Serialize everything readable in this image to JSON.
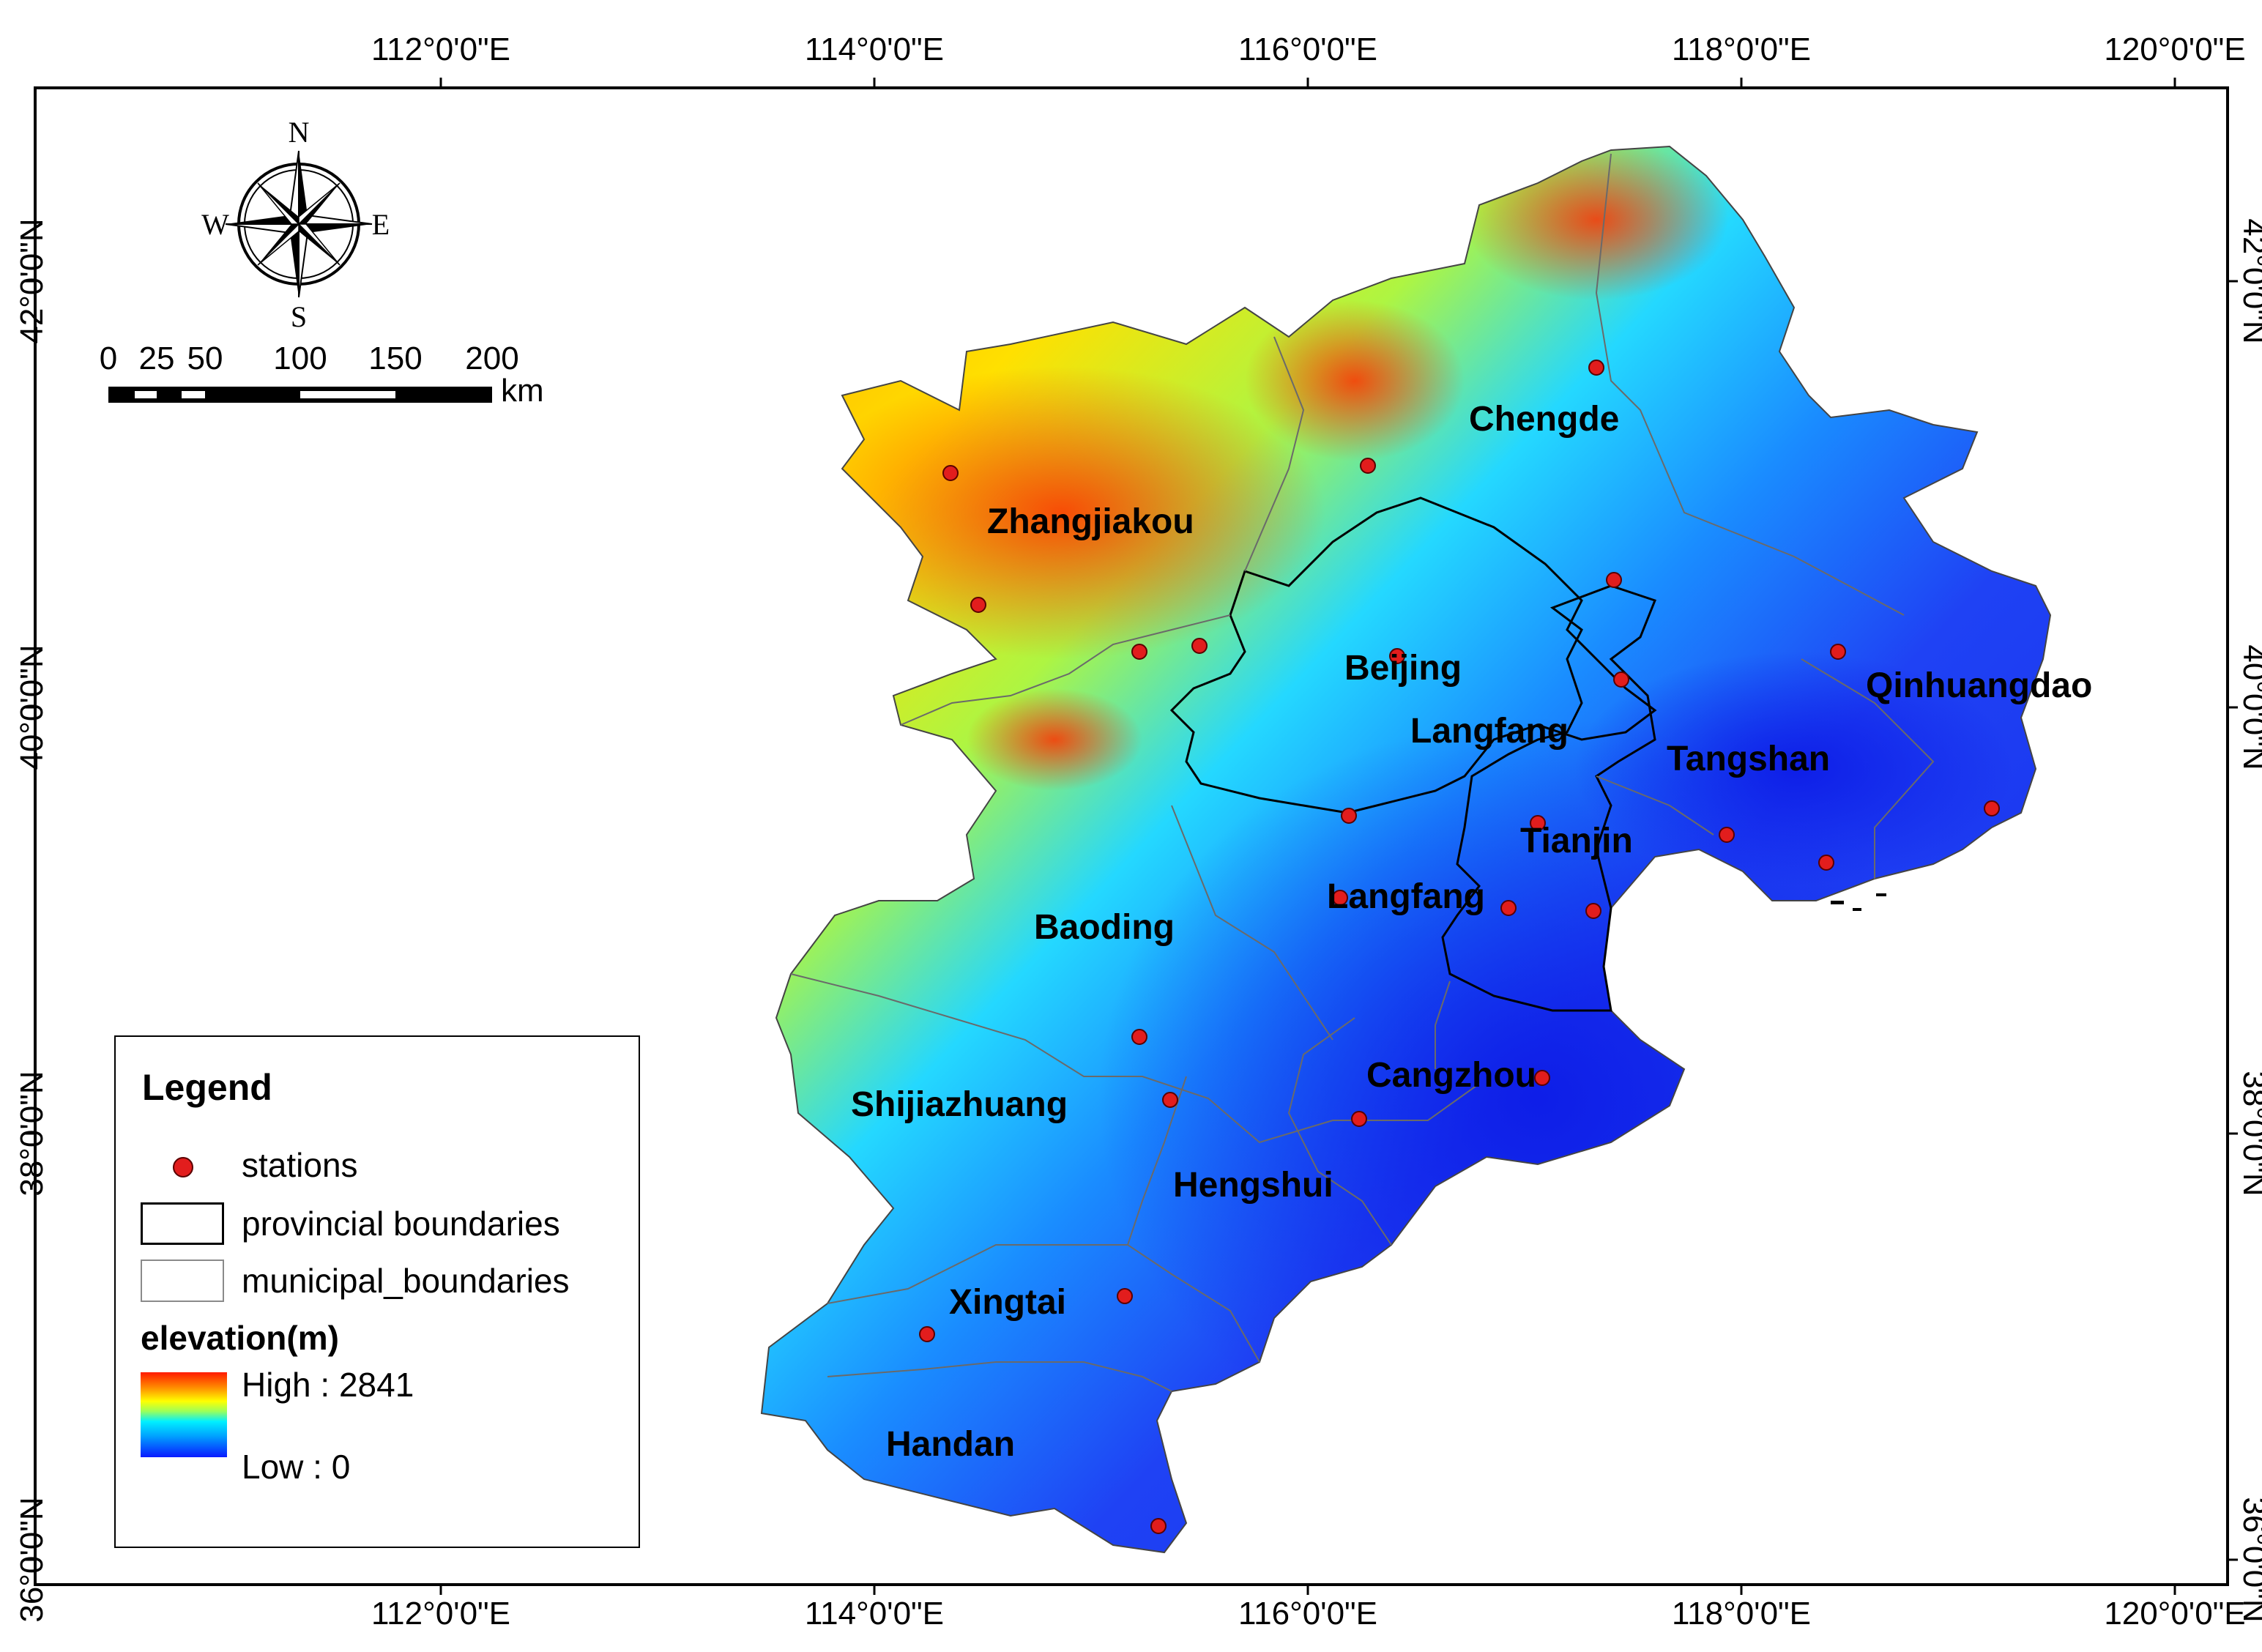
{
  "axes": {
    "lon_labels": [
      "112°0'0\"E",
      "114°0'0\"E",
      "116°0'0\"E",
      "118°0'0\"E",
      "120°0'0\"E"
    ],
    "lat_labels": [
      "42°0'0\"N",
      "40°0'0\"N",
      "38°0'0\"N",
      "36°0'0\"N"
    ]
  },
  "compass": {
    "n": "N",
    "s": "S",
    "e": "E",
    "w": "W"
  },
  "scale_bar": {
    "ticks": [
      "0",
      "25",
      "50",
      "100",
      "150",
      "200"
    ],
    "unit": "km"
  },
  "cities": [
    {
      "name": "Zhangjiakou"
    },
    {
      "name": "Chengde"
    },
    {
      "name": "Beijing"
    },
    {
      "name": "Qinhuangdao"
    },
    {
      "name": "Langfang"
    },
    {
      "name": "Tangshan"
    },
    {
      "name": "Tianjin"
    },
    {
      "name": "Langfang"
    },
    {
      "name": "Baoding"
    },
    {
      "name": "Cangzhou"
    },
    {
      "name": "Shijiazhuang"
    },
    {
      "name": "Hengshui"
    },
    {
      "name": "Xingtai"
    },
    {
      "name": "Handan"
    }
  ],
  "legend": {
    "title": "Legend",
    "stations": "stations",
    "provincial": "provincial boundaries",
    "municipal": "municipal_boundaries",
    "elevation_title": "elevation(m)",
    "high": "High : 2841",
    "low": "Low : 0"
  },
  "colors": {
    "station": "#e21d1d",
    "high": "#ff1a00",
    "low": "#0a1aff"
  }
}
